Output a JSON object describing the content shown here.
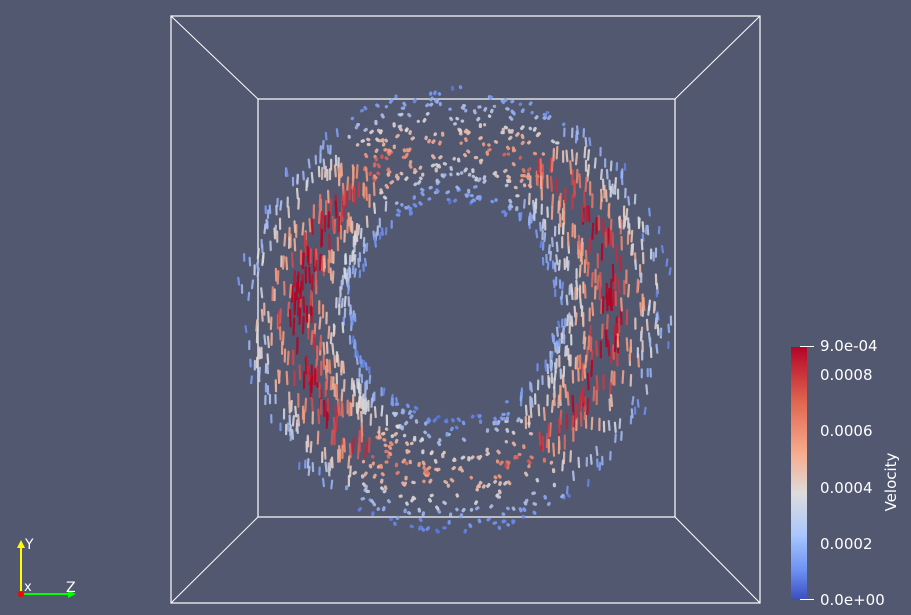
{
  "view": {
    "background_color": "#525870",
    "outline_color": "#ffffff",
    "glyph_type": "arrow-glyphs",
    "pattern": "two counter-rotating vortex rings seen in perspective"
  },
  "colorbar": {
    "title": "Velocity",
    "colormap": "Cool to Warm",
    "low_color": "#3b4cc0",
    "mid_color": "#dddcdc",
    "high_color": "#b40426",
    "range": [
      0,
      0.0009
    ],
    "labels": [
      "9.0e-04",
      "0.0008",
      "0.0006",
      "0.0004",
      "0.0002",
      "0.0e+00"
    ]
  },
  "axes": {
    "y_label": "Y",
    "x_label": "x",
    "z_label": "Z",
    "y_color": "#ffff00",
    "x_color": "#ff0000",
    "z_color": "#00ff00"
  }
}
